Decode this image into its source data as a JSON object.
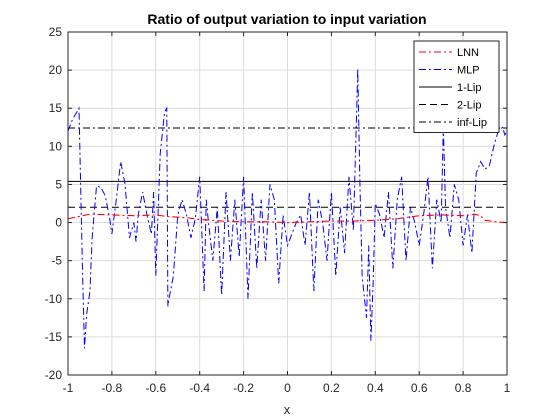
{
  "chart_data": {
    "type": "line",
    "title": "Ratio of output variation to input variation",
    "xlabel": "x",
    "ylabel": "",
    "xlim": [
      -1,
      1
    ],
    "ylim": [
      -20,
      25
    ],
    "xticks": [
      "-1",
      "-0.8",
      "-0.6",
      "-0.4",
      "-0.2",
      "0",
      "0.2",
      "0.4",
      "0.6",
      "0.8",
      "1"
    ],
    "xtick_values": [
      -1,
      -0.8,
      -0.6,
      -0.4,
      -0.2,
      0,
      0.2,
      0.4,
      0.6,
      0.8,
      1
    ],
    "yticks": [
      "-20",
      "-15",
      "-10",
      "-5",
      "0",
      "5",
      "10",
      "15",
      "20",
      "25"
    ],
    "ytick_values": [
      -20,
      -15,
      -10,
      -5,
      0,
      5,
      10,
      15,
      20,
      25
    ],
    "grid": true,
    "legend_position": "top-right",
    "series": [
      {
        "name": "LNN",
        "color": "#ff0000",
        "dash": "dash-dot",
        "x": [
          -1,
          -0.95,
          -0.9,
          -0.8,
          -0.7,
          -0.6,
          -0.55,
          -0.5,
          -0.45,
          -0.4,
          -0.3,
          -0.2,
          -0.1,
          0,
          0.1,
          0.2,
          0.3,
          0.4,
          0.5,
          0.55,
          0.6,
          0.7,
          0.8,
          0.85,
          0.88,
          0.9,
          0.95,
          1
        ],
        "y": [
          0.5,
          0.8,
          1.1,
          1.0,
          0.9,
          1.0,
          0.8,
          0.7,
          0.6,
          0.4,
          0.2,
          0.1,
          0.1,
          0.0,
          0.1,
          0.2,
          0.2,
          0.3,
          0.5,
          0.7,
          0.9,
          1.0,
          0.9,
          1.1,
          0.9,
          0.3,
          0.1,
          0.0
        ]
      },
      {
        "name": "MLP",
        "color": "#0000ff",
        "dash": "dash-dot",
        "x": [
          -1,
          -0.98,
          -0.95,
          -0.935,
          -0.925,
          -0.915,
          -0.9,
          -0.89,
          -0.87,
          -0.85,
          -0.83,
          -0.81,
          -0.8,
          -0.78,
          -0.76,
          -0.74,
          -0.72,
          -0.7,
          -0.69,
          -0.68,
          -0.66,
          -0.64,
          -0.62,
          -0.61,
          -0.6,
          -0.58,
          -0.56,
          -0.55,
          -0.545,
          -0.54,
          -0.52,
          -0.5,
          -0.48,
          -0.46,
          -0.44,
          -0.42,
          -0.4,
          -0.38,
          -0.37,
          -0.36,
          -0.34,
          -0.32,
          -0.3,
          -0.28,
          -0.26,
          -0.24,
          -0.22,
          -0.2,
          -0.18,
          -0.16,
          -0.14,
          -0.12,
          -0.1,
          -0.08,
          -0.06,
          -0.04,
          -0.02,
          0,
          0.02,
          0.04,
          0.06,
          0.08,
          0.1,
          0.12,
          0.14,
          0.16,
          0.18,
          0.2,
          0.22,
          0.24,
          0.26,
          0.28,
          0.3,
          0.315,
          0.32,
          0.33,
          0.34,
          0.36,
          0.37,
          0.38,
          0.39,
          0.4,
          0.42,
          0.44,
          0.46,
          0.48,
          0.5,
          0.52,
          0.54,
          0.56,
          0.58,
          0.6,
          0.62,
          0.64,
          0.66,
          0.68,
          0.7,
          0.71,
          0.72,
          0.74,
          0.76,
          0.78,
          0.8,
          0.82,
          0.84,
          0.86,
          0.88,
          0.9,
          0.92,
          0.94,
          0.96,
          0.98,
          0.99,
          1
        ],
        "y": [
          12,
          13.5,
          15,
          -5,
          -16.5,
          -12,
          -9,
          -2,
          4.8,
          4.6,
          3.5,
          0.5,
          -1.5,
          3,
          8,
          5,
          -2,
          0,
          -2.5,
          1,
          4,
          1,
          -1.5,
          4,
          -7,
          9,
          14.5,
          15,
          -11,
          -10,
          -7,
          1,
          3,
          1,
          -2,
          0.5,
          6,
          -9,
          3,
          0,
          -5,
          2,
          -9.5,
          4,
          -5,
          3,
          -4.5,
          6,
          -10,
          4,
          -6,
          3,
          -5,
          5,
          3,
          -8,
          1,
          -3,
          -1.5,
          0,
          1,
          -3,
          4,
          -9,
          3,
          0,
          -5,
          4,
          -7,
          2,
          -4,
          6,
          -1,
          14.5,
          20.2,
          5,
          -7,
          -12.5,
          -3,
          -15.5,
          -8,
          2.5,
          1,
          -2,
          4,
          -6,
          3,
          6,
          -5,
          2,
          0,
          -3,
          1,
          6,
          -6,
          3,
          0,
          12.5,
          2,
          -2,
          5,
          3,
          -3,
          1,
          -4,
          6.5,
          8,
          7,
          7.5,
          10,
          12,
          12.5,
          11.5,
          12
        ]
      },
      {
        "name": "1-Lip",
        "color": "#000000",
        "dash": "solid",
        "x": [
          -1,
          1
        ],
        "y": [
          5.4,
          5.4
        ]
      },
      {
        "name": "2-Lip",
        "color": "#000000",
        "dash": "dashed",
        "x": [
          -1,
          1
        ],
        "y": [
          2.0,
          2.0
        ]
      },
      {
        "name": "inf-Lip",
        "color": "#000000",
        "dash": "dash-dot",
        "x": [
          -1,
          1
        ],
        "y": [
          12.4,
          12.4
        ]
      }
    ]
  }
}
